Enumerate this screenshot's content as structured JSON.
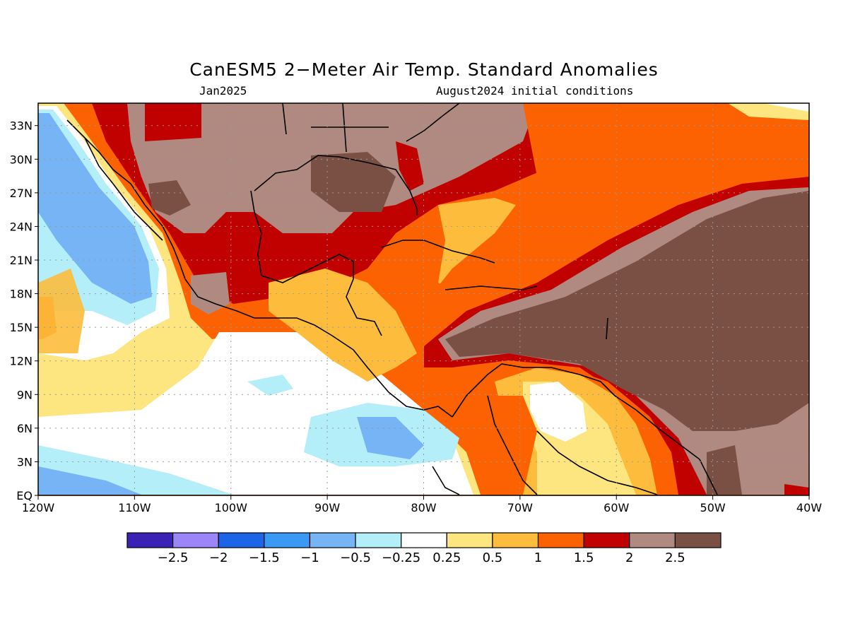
{
  "title": "CanESM5 2−Meter Air Temp. Standard Anomalies",
  "subtitle_left": "Jan2025",
  "subtitle_right": "August2024 initial conditions",
  "map": {
    "lon_range": [
      -120,
      -40
    ],
    "lat_range": [
      0,
      35
    ],
    "lon_labels": [
      "120W",
      "110W",
      "100W",
      "90W",
      "80W",
      "70W",
      "60W",
      "50W",
      "40W"
    ],
    "lat_labels": [
      "EQ",
      "3N",
      "6N",
      "9N",
      "12N",
      "15N",
      "18N",
      "21N",
      "24N",
      "27N",
      "30N",
      "33N"
    ],
    "grid": "dotted"
  },
  "colorbar": {
    "colors": [
      "#3b22b5",
      "#9c86f7",
      "#1e64e6",
      "#3c98f5",
      "#76b4f5",
      "#b4eef8",
      "#ffffff",
      "#fde57f",
      "#fdbc3c",
      "#fd6202",
      "#c10000",
      "#b08a80",
      "#7a5045"
    ],
    "labels": [
      "−2.5",
      "−2",
      "−1.5",
      "−1",
      "−0.5",
      "−0.25",
      "0.25",
      "0.5",
      "1",
      "1.5",
      "2",
      "2.5"
    ]
  }
}
